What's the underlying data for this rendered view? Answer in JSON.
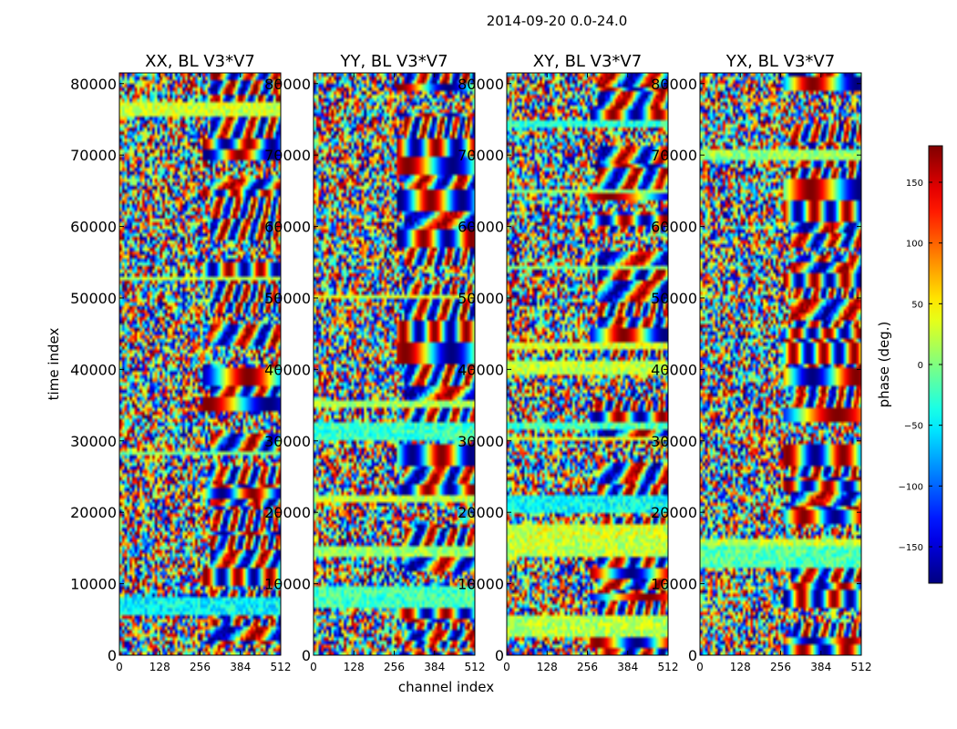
{
  "figure_title": "2014-09-20 0.0-24.0",
  "colors": {
    "frame": "#000000",
    "background": "#ffffff"
  },
  "chart_data": [
    {
      "type": "heatmap",
      "title": "XX, BL V3*V7",
      "xlabel": "",
      "ylabel": "time index",
      "xlim": [
        0,
        512
      ],
      "ylim": [
        0,
        81500
      ],
      "xticks": [
        0,
        128,
        256,
        384,
        512
      ],
      "yticks": [
        0,
        10000,
        20000,
        30000,
        40000,
        50000,
        60000,
        70000,
        80000
      ],
      "seed": 11,
      "value_range": [
        -180,
        180
      ]
    },
    {
      "type": "heatmap",
      "title": "YY, BL V3*V7",
      "xlabel": "channel index",
      "ylabel": "",
      "xlim": [
        0,
        512
      ],
      "ylim": [
        0,
        81500
      ],
      "xticks": [
        0,
        128,
        256,
        384,
        512
      ],
      "yticks": [
        0,
        10000,
        20000,
        30000,
        40000,
        50000,
        60000,
        70000,
        80000
      ],
      "seed": 23,
      "value_range": [
        -180,
        180
      ]
    },
    {
      "type": "heatmap",
      "title": "XY, BL V3*V7",
      "xlabel": "",
      "ylabel": "",
      "xlim": [
        0,
        512
      ],
      "ylim": [
        0,
        81500
      ],
      "xticks": [
        0,
        128,
        256,
        384,
        512
      ],
      "yticks": [
        0,
        10000,
        20000,
        30000,
        40000,
        50000,
        60000,
        70000,
        80000
      ],
      "seed": 37,
      "value_range": [
        -180,
        180
      ]
    },
    {
      "type": "heatmap",
      "title": "YX, BL V3*V7",
      "xlabel": "",
      "ylabel": "",
      "xlim": [
        0,
        512
      ],
      "ylim": [
        0,
        81500
      ],
      "xticks": [
        0,
        128,
        256,
        384,
        512
      ],
      "yticks": [
        0,
        10000,
        20000,
        30000,
        40000,
        50000,
        60000,
        70000,
        80000
      ],
      "seed": 53,
      "value_range": [
        -180,
        180
      ]
    }
  ],
  "colorbar": {
    "label": "phase (deg.)",
    "range": [
      -180,
      180
    ],
    "ticks": [
      150,
      100,
      50,
      0,
      -50,
      -100,
      -150
    ],
    "tick_labels": [
      "150",
      "100",
      "50",
      "0",
      "−50",
      "−100",
      "−150"
    ],
    "colormap": "jet"
  }
}
